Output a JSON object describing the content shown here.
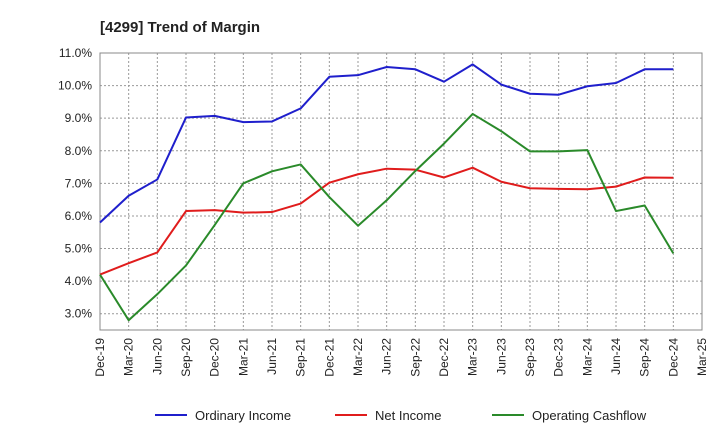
{
  "chart_data": {
    "type": "line",
    "title": "[4299]  Trend of Margin",
    "xlabel": "",
    "ylabel": "",
    "ylim": [
      2.5,
      11.0
    ],
    "yticks": [
      "3.0%",
      "4.0%",
      "5.0%",
      "6.0%",
      "7.0%",
      "8.0%",
      "9.0%",
      "10.0%",
      "11.0%"
    ],
    "ytick_values": [
      3,
      4,
      5,
      6,
      7,
      8,
      9,
      10,
      11
    ],
    "categories": [
      "Dec-19",
      "Mar-20",
      "Jun-20",
      "Sep-20",
      "Dec-20",
      "Mar-21",
      "Jun-21",
      "Sep-21",
      "Dec-21",
      "Mar-22",
      "Jun-22",
      "Sep-22",
      "Dec-22",
      "Mar-23",
      "Jun-23",
      "Sep-23",
      "Dec-23",
      "Mar-24",
      "Jun-24",
      "Sep-24",
      "Dec-24",
      "Mar-25"
    ],
    "grid": true,
    "legend_position": "bottom",
    "series": [
      {
        "name": "Ordinary Income",
        "color": "#1f1fcc",
        "values": [
          5.8,
          6.62,
          7.12,
          9.02,
          9.07,
          8.88,
          8.9,
          9.3,
          10.27,
          10.32,
          10.57,
          10.5,
          10.12,
          10.65,
          10.03,
          9.75,
          9.72,
          9.98,
          10.08,
          10.5,
          10.5,
          null
        ]
      },
      {
        "name": "Net Income",
        "color": "#e01c1c",
        "values": [
          4.2,
          4.55,
          4.88,
          6.15,
          6.18,
          6.1,
          6.12,
          6.38,
          7.02,
          7.28,
          7.45,
          7.42,
          7.18,
          7.48,
          7.05,
          6.85,
          6.83,
          6.82,
          6.9,
          7.18,
          7.17,
          null
        ]
      },
      {
        "name": "Operating Cashflow",
        "color": "#2a8a2a",
        "values": [
          4.2,
          2.8,
          3.6,
          4.48,
          5.72,
          7.0,
          7.37,
          7.58,
          6.58,
          5.7,
          6.48,
          7.38,
          8.22,
          9.13,
          8.6,
          7.98,
          7.98,
          8.02,
          6.15,
          6.32,
          4.85,
          null
        ]
      }
    ]
  }
}
